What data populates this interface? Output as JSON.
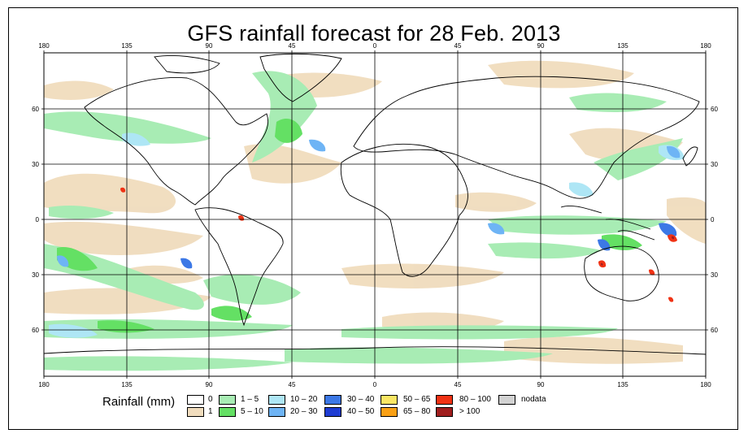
{
  "title": "GFS rainfall forecast for 28 Feb. 2013",
  "axes": {
    "lon_labels": [
      "180",
      "135",
      "90",
      "45",
      "0",
      "45",
      "90",
      "135",
      "180"
    ],
    "lat_labels": [
      "60",
      "30",
      "0",
      "30",
      "60"
    ]
  },
  "legend": {
    "label": "Rainfall (mm)",
    "items": [
      {
        "text": "0",
        "color": "#ffffff"
      },
      {
        "text": "1",
        "color": "#f0dcbd"
      },
      {
        "text": "1 – 5",
        "color": "#a8ecb4"
      },
      {
        "text": "5 – 10",
        "color": "#64e064"
      },
      {
        "text": "10 – 20",
        "color": "#aee6f5"
      },
      {
        "text": "20 – 30",
        "color": "#6eb4f5"
      },
      {
        "text": "30 – 40",
        "color": "#3c78e6"
      },
      {
        "text": "40 – 50",
        "color": "#1e3cd2"
      },
      {
        "text": "50 – 65",
        "color": "#fae664"
      },
      {
        "text": "65 – 80",
        "color": "#faa014"
      },
      {
        "text": "80 – 100",
        "color": "#f03214"
      },
      {
        "text": "> 100",
        "color": "#a01e1e"
      },
      {
        "text": "nodata",
        "color": "#d2d2d2"
      }
    ]
  }
}
